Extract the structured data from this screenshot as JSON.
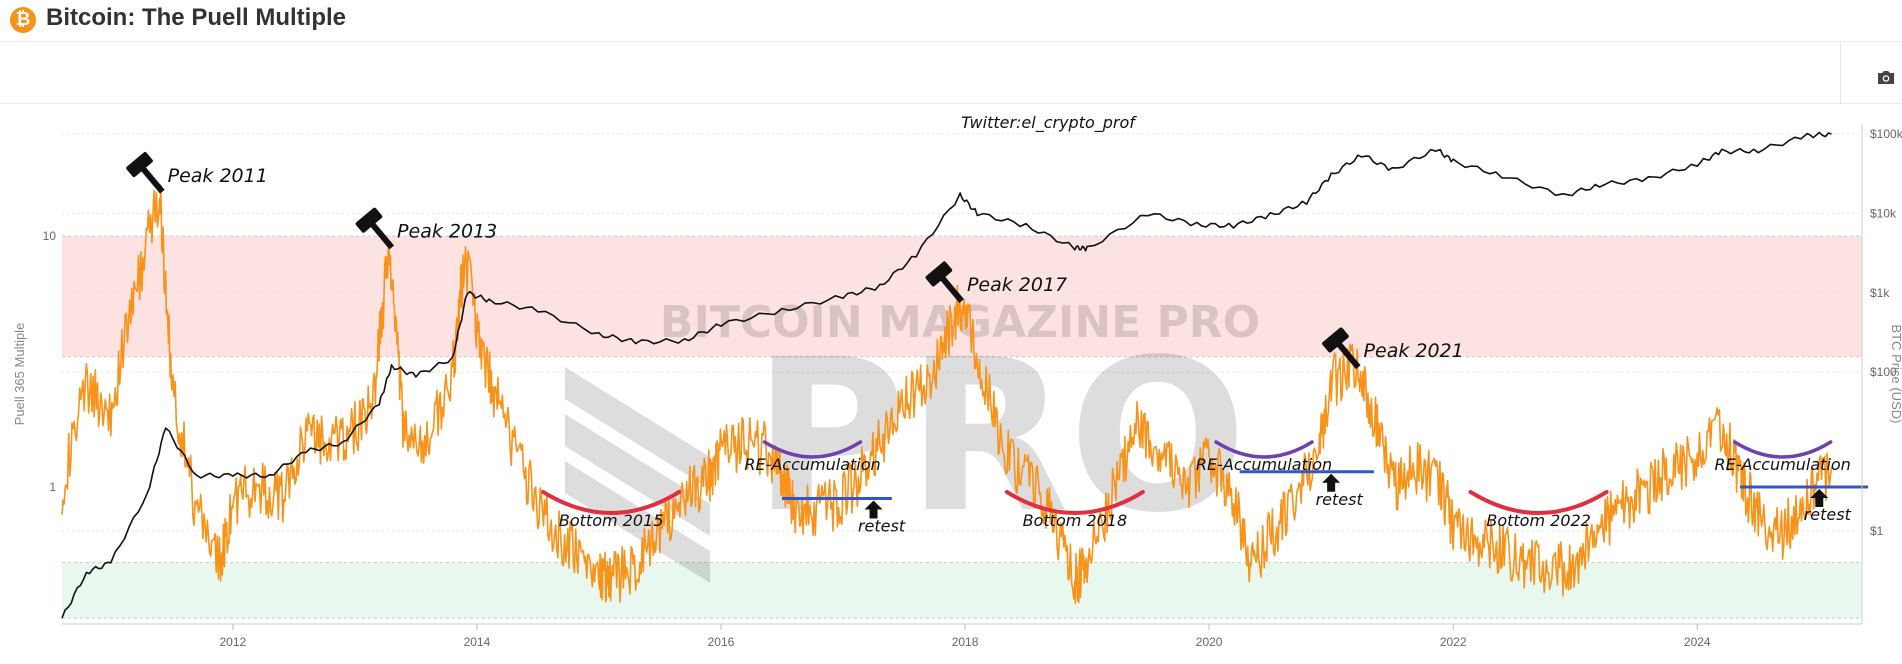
{
  "header": {
    "logo_glyph": "₿",
    "title": "Bitcoin: The Puell Multiple"
  },
  "toolbar": {
    "camera_icon": "camera-icon"
  },
  "colors": {
    "puell": "#f7931a",
    "price": "#111111",
    "red_zone": "#fde2e2",
    "green_zone": "#e8f8ee",
    "accent_blue": "#3355cc",
    "accent_purple": "#7040b0",
    "accent_red": "#e03040"
  },
  "chart_data": {
    "type": "line",
    "xlim": [
      2010.6,
      2025.35
    ],
    "x_ticks": [
      "2012",
      "2014",
      "2016",
      "2018",
      "2020",
      "2022",
      "2024"
    ],
    "y_left": {
      "label": "Puell 365 Multiple",
      "scale": "log",
      "ticks": [
        {
          "v": 10,
          "t": "10"
        },
        {
          "v": 1,
          "t": "1"
        }
      ]
    },
    "y_right": {
      "label": "BTC Price (USD)",
      "scale": "log",
      "ticks": [
        {
          "v": 100000,
          "t": "$100k"
        },
        {
          "v": 10000,
          "t": "$10k"
        },
        {
          "v": 1000,
          "t": "$1k"
        },
        {
          "v": 100,
          "t": "$100"
        },
        {
          "v": 1,
          "t": "$1"
        }
      ]
    },
    "zones": [
      {
        "name": "red",
        "from": 3.3,
        "to": 10
      },
      {
        "name": "green",
        "from": 0.3,
        "to": 0.5
      }
    ],
    "watermark": "BITCOIN MAGAZINE PRO",
    "credit": "Twitter:el_crypto_prof",
    "series": [
      {
        "name": "Puell Multiple",
        "x": [
          2010.6,
          2010.8,
          2011.0,
          2011.2,
          2011.4,
          2011.5,
          2011.7,
          2011.9,
          2012.0,
          2012.2,
          2012.4,
          2012.6,
          2012.8,
          2013.0,
          2013.15,
          2013.28,
          2013.4,
          2013.6,
          2013.8,
          2013.9,
          2014.05,
          2014.2,
          2014.4,
          2014.6,
          2014.8,
          2015.0,
          2015.1,
          2015.3,
          2015.5,
          2015.7,
          2015.9,
          2016.0,
          2016.2,
          2016.4,
          2016.5,
          2016.6,
          2016.8,
          2017.0,
          2017.2,
          2017.4,
          2017.6,
          2017.8,
          2017.95,
          2018.1,
          2018.3,
          2018.5,
          2018.7,
          2018.9,
          2019.0,
          2019.2,
          2019.4,
          2019.6,
          2019.8,
          2020.0,
          2020.2,
          2020.35,
          2020.5,
          2020.7,
          2020.9,
          2021.0,
          2021.2,
          2021.35,
          2021.5,
          2021.7,
          2021.9,
          2022.0,
          2022.2,
          2022.4,
          2022.6,
          2022.8,
          2023.0,
          2023.2,
          2023.4,
          2023.6,
          2023.8,
          2024.0,
          2024.2,
          2024.35,
          2024.5,
          2024.7,
          2024.9,
          2025.1
        ],
        "y": [
          1.0,
          2.5,
          2.0,
          6.0,
          15.0,
          2.5,
          0.8,
          0.5,
          0.9,
          1.0,
          0.9,
          1.6,
          1.5,
          1.7,
          2.2,
          9.0,
          1.6,
          1.5,
          2.8,
          8.5,
          3.2,
          2.0,
          1.1,
          0.7,
          0.55,
          0.45,
          0.42,
          0.5,
          0.65,
          0.9,
          1.1,
          1.4,
          1.5,
          1.4,
          1.1,
          0.8,
          0.8,
          0.9,
          1.2,
          1.8,
          2.5,
          3.2,
          5.5,
          3.5,
          1.4,
          1.1,
          0.8,
          0.42,
          0.5,
          0.9,
          1.8,
          1.4,
          1.0,
          1.3,
          0.9,
          0.48,
          0.65,
          0.85,
          1.5,
          2.6,
          3.0,
          2.0,
          1.0,
          1.2,
          1.0,
          0.7,
          0.6,
          0.55,
          0.5,
          0.45,
          0.5,
          0.7,
          0.85,
          1.0,
          1.2,
          1.3,
          1.7,
          1.1,
          0.75,
          0.65,
          0.95,
          1.2
        ]
      },
      {
        "name": "BTC Price",
        "x": [
          2010.6,
          2010.8,
          2011.0,
          2011.3,
          2011.45,
          2011.7,
          2012.0,
          2012.3,
          2012.6,
          2012.9,
          2013.2,
          2013.3,
          2013.5,
          2013.8,
          2013.92,
          2014.1,
          2014.5,
          2015.0,
          2015.3,
          2015.7,
          2016.0,
          2016.5,
          2017.0,
          2017.3,
          2017.6,
          2017.96,
          2018.1,
          2018.5,
          2018.9,
          2019.0,
          2019.5,
          2019.9,
          2020.2,
          2020.5,
          2020.8,
          2021.0,
          2021.25,
          2021.5,
          2021.86,
          2022.0,
          2022.4,
          2022.9,
          2023.2,
          2023.6,
          2024.0,
          2024.2,
          2024.5,
          2024.9,
          2025.1
        ],
        "y": [
          0.08,
          0.3,
          0.4,
          3.0,
          20.0,
          5.0,
          5.0,
          5.0,
          10.0,
          13.0,
          40.0,
          120.0,
          90.0,
          150.0,
          1000.0,
          800.0,
          600.0,
          300.0,
          240.0,
          250.0,
          400.0,
          600.0,
          900.0,
          1200.0,
          3000.0,
          17000.0,
          10000.0,
          7000.0,
          3700.0,
          3600.0,
          10000.0,
          7200.0,
          7000.0,
          9500.0,
          14000.0,
          30000.0,
          55000.0,
          35000.0,
          65000.0,
          45000.0,
          30000.0,
          16500.0,
          23000.0,
          27000.0,
          42000.0,
          60000.0,
          62000.0,
          95000.0,
          100000.0
        ]
      }
    ],
    "annotations": [
      {
        "text": "Peak 2011",
        "x": 2011.4,
        "y": 15.0,
        "kind": "peak"
      },
      {
        "text": "Peak 2013",
        "x": 2013.28,
        "y": 9.0,
        "kind": "peak"
      },
      {
        "text": "Peak 2017",
        "x": 2017.95,
        "y": 5.5,
        "kind": "peak"
      },
      {
        "text": "Peak 2021",
        "x": 2021.2,
        "y": 3.0,
        "kind": "peak"
      },
      {
        "text": "Bottom 2015",
        "x": 2015.1,
        "kind": "bottom"
      },
      {
        "text": "Bottom 2018",
        "x": 2018.9,
        "kind": "bottom"
      },
      {
        "text": "Bottom 2022",
        "x": 2022.7,
        "kind": "bottom"
      },
      {
        "text": "RE-Accumulation",
        "x": 2016.75,
        "kind": "reacc"
      },
      {
        "text": "RE-Accumulation",
        "x": 2020.45,
        "kind": "reacc"
      },
      {
        "text": "RE-Accumulation",
        "x": 2024.7,
        "kind": "reacc"
      },
      {
        "text": "retest",
        "x": 2017.25,
        "y": 0.9,
        "kind": "retest"
      },
      {
        "text": "retest",
        "x": 2021.0,
        "y": 1.15,
        "kind": "retest"
      },
      {
        "text": "retest",
        "x": 2025.0,
        "y": 1.0,
        "kind": "retest"
      }
    ],
    "levels": [
      {
        "from": 2016.5,
        "to": 2017.4,
        "y": 0.9
      },
      {
        "from": 2020.25,
        "to": 2021.35,
        "y": 1.15
      },
      {
        "from": 2024.35,
        "to": 2025.4,
        "y": 1.0
      }
    ]
  }
}
